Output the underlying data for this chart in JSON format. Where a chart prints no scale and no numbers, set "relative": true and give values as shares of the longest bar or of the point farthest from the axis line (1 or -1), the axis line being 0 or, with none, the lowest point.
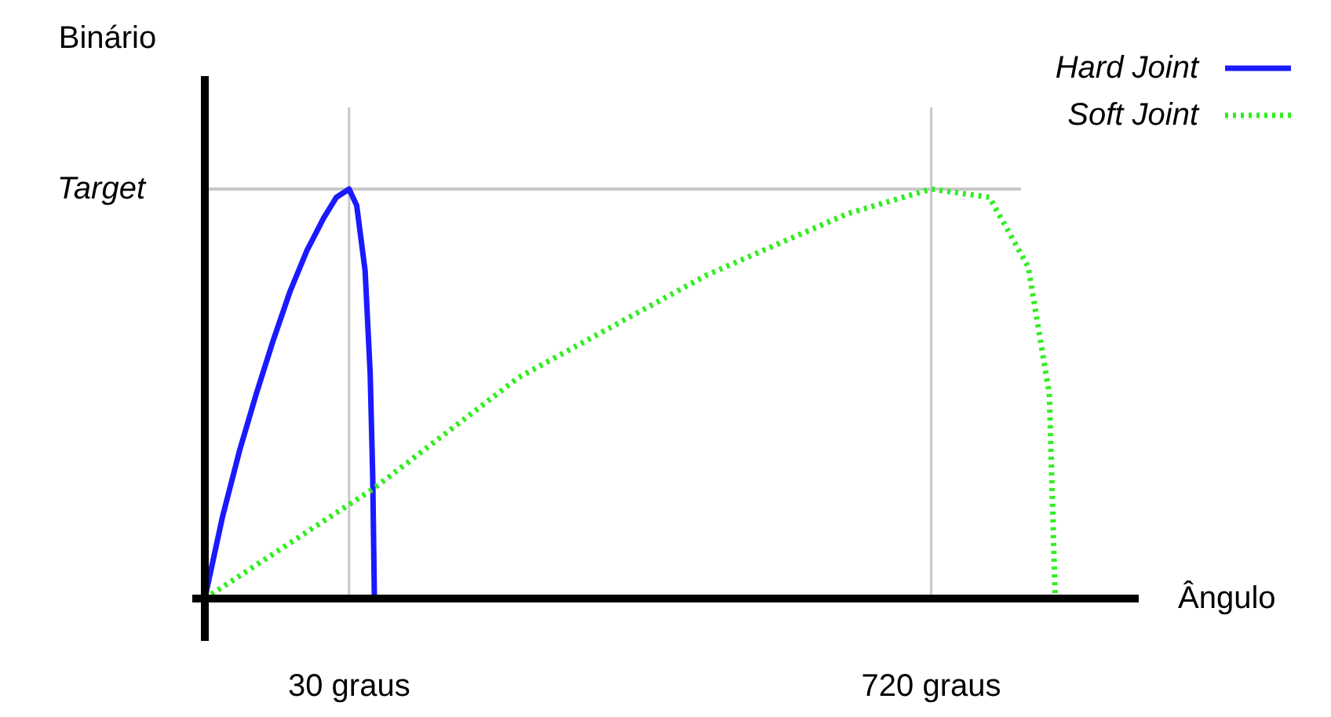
{
  "chart_data": {
    "type": "line",
    "xlabel": "Ângulo",
    "ylabel": "Binário",
    "relative": true,
    "xlim": [
      -141,
      966
    ],
    "xticks": [
      {
        "value": 30,
        "label": "30 graus"
      },
      {
        "value": 720,
        "label": "720 graus"
      }
    ],
    "grid": "x",
    "legend": "top right",
    "ref_lines": [
      {
        "axis": "y",
        "value": 1,
        "label": "Target",
        "color": "#c8c8c8"
      }
    ],
    "series": [
      {
        "name": "Hard Joint",
        "color": "#1a1aff",
        "line_style": "solid",
        "x": [
          -141,
          -120,
          -100,
          -80,
          -60,
          -40,
          -20,
          0,
          15,
          30,
          39,
          49,
          55,
          58,
          60
        ],
        "values": [
          0,
          0.2,
          0.36,
          0.5,
          0.63,
          0.75,
          0.85,
          0.93,
          0.98,
          1.0,
          0.96,
          0.8,
          0.55,
          0.3,
          0
        ]
      },
      {
        "name": "Soft Joint",
        "color": "#33ee22",
        "line_style": "dotted",
        "x": [
          -141,
          60,
          231,
          454,
          621,
          720,
          789,
          835,
          860,
          867
        ],
        "values": [
          0,
          0.27,
          0.54,
          0.79,
          0.94,
          1.0,
          0.98,
          0.81,
          0.5,
          0
        ]
      }
    ]
  }
}
